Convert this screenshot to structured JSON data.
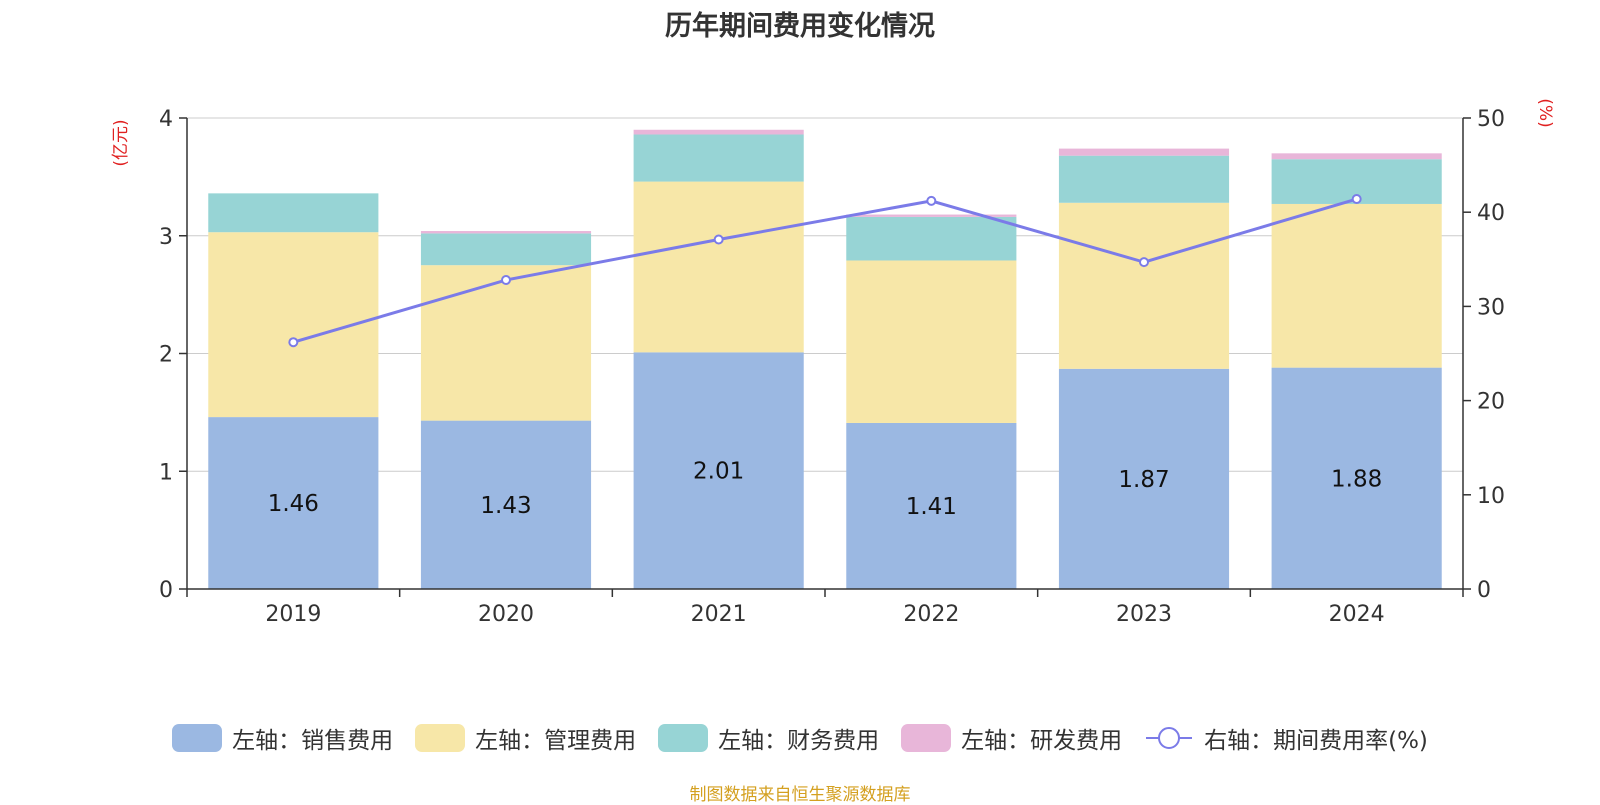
{
  "chart_data": {
    "type": "bar",
    "title": "历年期间费用变化情况",
    "categories": [
      "2019",
      "2020",
      "2021",
      "2022",
      "2023",
      "2024"
    ],
    "series": [
      {
        "name": "左轴：销售费用",
        "axis": "left",
        "color": "#9bb8e2",
        "values": [
          1.46,
          1.43,
          2.01,
          1.41,
          1.87,
          1.88
        ],
        "show_labels": true
      },
      {
        "name": "左轴：管理费用",
        "axis": "left",
        "color": "#f7e7a8",
        "values": [
          1.57,
          1.32,
          1.45,
          1.38,
          1.41,
          1.39
        ],
        "show_labels": false
      },
      {
        "name": "左轴：财务费用",
        "axis": "left",
        "color": "#97d4d5",
        "values": [
          0.33,
          0.27,
          0.4,
          0.37,
          0.4,
          0.38
        ],
        "show_labels": false
      },
      {
        "name": "左轴：研发费用",
        "axis": "left",
        "color": "#e8b6d9",
        "values": [
          0.0,
          0.02,
          0.04,
          0.02,
          0.06,
          0.05
        ],
        "show_labels": false
      },
      {
        "name": "右轴：期间费用率(%)",
        "axis": "right",
        "type": "line",
        "color": "#7b7be8",
        "values": [
          26.2,
          32.8,
          37.1,
          41.2,
          34.7,
          41.4
        ]
      }
    ],
    "left_axis": {
      "unit": "(亿元)",
      "ylim": [
        0,
        4
      ],
      "ticks": [
        "0",
        "1",
        "2",
        "3",
        "4"
      ]
    },
    "right_axis": {
      "unit": "(%)",
      "ylim": [
        0,
        50
      ],
      "ticks": [
        "0",
        "10",
        "20",
        "30",
        "40",
        "50"
      ]
    },
    "legend_position": "bottom"
  },
  "source": "制图数据来自恒生聚源数据库"
}
